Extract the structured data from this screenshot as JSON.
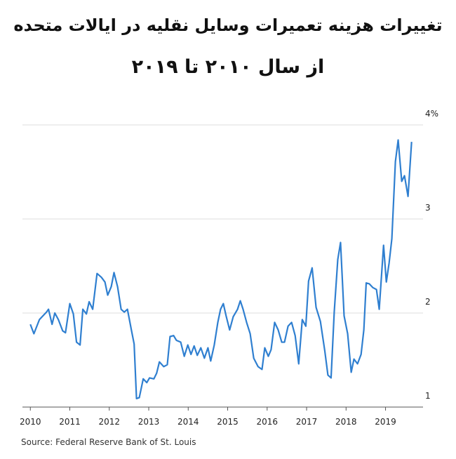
{
  "chart_data": {
    "type": "line",
    "title": "تغییرات هزینه تعمیرات وسایل نقلیه در ایالات متحده",
    "subtitle": "از سال ۲۰۱۰ تا ۲۰۱۹",
    "source": "Source: Federal Reserve Bank of St. Louis",
    "x": [
      2010.0,
      2010.09,
      2010.23,
      2010.41,
      2010.46,
      2010.55,
      2010.62,
      2010.71,
      2010.82,
      2010.89,
      2011.0,
      2011.09,
      2011.17,
      2011.26,
      2011.33,
      2011.42,
      2011.49,
      2011.58,
      2011.69,
      2011.8,
      2011.89,
      2011.96,
      2012.05,
      2012.12,
      2012.21,
      2012.3,
      2012.38,
      2012.46,
      2012.56,
      2012.63,
      2012.69,
      2012.76,
      2012.86,
      2012.95,
      2013.02,
      2013.13,
      2013.2,
      2013.27,
      2013.38,
      2013.47,
      2013.54,
      2013.63,
      2013.7,
      2013.81,
      2013.9,
      2013.99,
      2014.07,
      2014.15,
      2014.23,
      2014.32,
      2014.41,
      2014.5,
      2014.57,
      2014.66,
      2014.75,
      2014.82,
      2014.89,
      2014.96,
      2015.05,
      2015.14,
      2015.25,
      2015.32,
      2015.39,
      2015.48,
      2015.57,
      2015.66,
      2015.77,
      2015.87,
      2015.94,
      2016.03,
      2016.1,
      2016.19,
      2016.28,
      2016.37,
      2016.44,
      2016.53,
      2016.62,
      2016.71,
      2016.8,
      2016.89,
      2016.98,
      2017.05,
      2017.14,
      2017.24,
      2017.35,
      2017.46,
      2017.54,
      2017.62,
      2017.7,
      2017.79,
      2017.86,
      2017.95,
      2018.04,
      2018.13,
      2018.2,
      2018.29,
      2018.38,
      2018.45,
      2018.51,
      2018.59,
      2018.68,
      2018.77,
      2018.84,
      2018.95,
      2019.02,
      2019.09,
      2019.16,
      2019.25,
      2019.32,
      2019.41,
      2019.48,
      2019.57,
      2019.66
    ],
    "series": [
      {
        "color": "#2f7fd0",
        "values": [
          1.88,
          1.78,
          1.93,
          2.01,
          2.04,
          1.88,
          2.0,
          1.93,
          1.81,
          1.79,
          2.1,
          1.99,
          1.69,
          1.66,
          2.04,
          1.99,
          2.12,
          2.04,
          2.42,
          2.38,
          2.33,
          2.19,
          2.28,
          2.43,
          2.28,
          2.04,
          2.01,
          2.04,
          1.82,
          1.67,
          1.09,
          1.1,
          1.3,
          1.26,
          1.31,
          1.3,
          1.36,
          1.48,
          1.43,
          1.45,
          1.75,
          1.76,
          1.71,
          1.69,
          1.54,
          1.66,
          1.56,
          1.65,
          1.55,
          1.63,
          1.52,
          1.63,
          1.49,
          1.66,
          1.9,
          2.04,
          2.1,
          1.97,
          1.82,
          1.96,
          2.04,
          2.13,
          2.04,
          1.9,
          1.78,
          1.52,
          1.43,
          1.4,
          1.63,
          1.54,
          1.61,
          1.9,
          1.82,
          1.69,
          1.69,
          1.86,
          1.9,
          1.76,
          1.46,
          1.93,
          1.86,
          2.34,
          2.48,
          2.06,
          1.91,
          1.6,
          1.34,
          1.31,
          2.01,
          2.57,
          2.75,
          1.97,
          1.78,
          1.37,
          1.51,
          1.46,
          1.56,
          1.82,
          2.32,
          2.31,
          2.27,
          2.25,
          2.04,
          2.72,
          2.33,
          2.53,
          2.79,
          3.61,
          3.84,
          3.4,
          3.46,
          3.24,
          3.82
        ]
      }
    ],
    "xlim": [
      2009.8,
      2019.95
    ],
    "xticks": [
      2010,
      2011,
      2012,
      2013,
      2014,
      2015,
      2016,
      2017,
      2018,
      2019
    ],
    "ylim": [
      1,
      4
    ],
    "yticks": [
      1,
      2,
      3,
      {
        "value": 4,
        "label": "4%"
      }
    ],
    "grid": true
  }
}
